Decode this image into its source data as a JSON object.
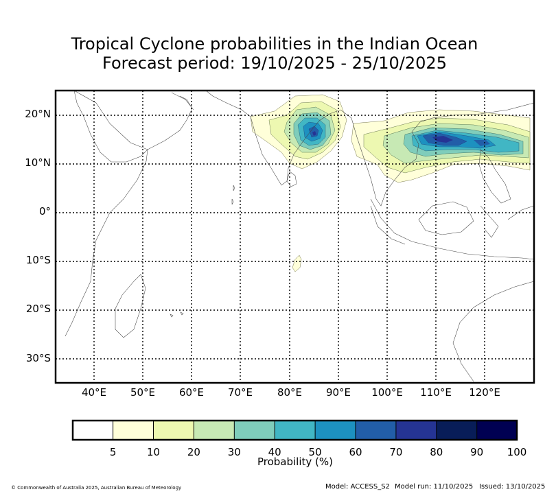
{
  "title": {
    "line1": "Tropical Cyclone probabilities in the Indian Ocean",
    "line2": "Forecast period: 19/10/2025 - 25/10/2025"
  },
  "axes": {
    "lat_labels": [
      "20°N",
      "10°N",
      "0°",
      "10°S",
      "20°S",
      "30°S"
    ],
    "lon_labels": [
      "40°E",
      "50°E",
      "60°E",
      "70°E",
      "80°E",
      "90°E",
      "100°E",
      "110°E",
      "120°E"
    ],
    "lon_range": [
      32,
      130
    ],
    "lat_range": [
      -35,
      25
    ]
  },
  "colorbar": {
    "title": "Probability (%)",
    "ticks": [
      "5",
      "10",
      "20",
      "30",
      "40",
      "50",
      "60",
      "70",
      "80",
      "90",
      "100"
    ],
    "colors": [
      "#ffffff",
      "#ffffd9",
      "#edf8b1",
      "#c7e9b4",
      "#7fcdbb",
      "#41b6c4",
      "#1d91c0",
      "#225ea8",
      "#253494",
      "#081d58",
      "#000052"
    ]
  },
  "probability_regions": [
    {
      "name": "Bay of Bengal",
      "center_lon": 85,
      "center_lat": 16,
      "peak_level": "60-70"
    },
    {
      "name": "South China Sea / Philippines",
      "center_lon": 111,
      "center_lat": 15,
      "peak_level": "60-70"
    },
    {
      "name": "Southern Indian Ocean small patch",
      "center_lon": 81.5,
      "center_lat": -10.5,
      "peak_level": "5-10"
    }
  ],
  "footer": {
    "copyright": "© Commonwealth of Australia 2025, Australian Bureau of Meteorology",
    "model": "Model: ACCESS_S2",
    "model_run": "Model run: 11/10/2025",
    "issued": "Issued: 13/10/2025"
  }
}
